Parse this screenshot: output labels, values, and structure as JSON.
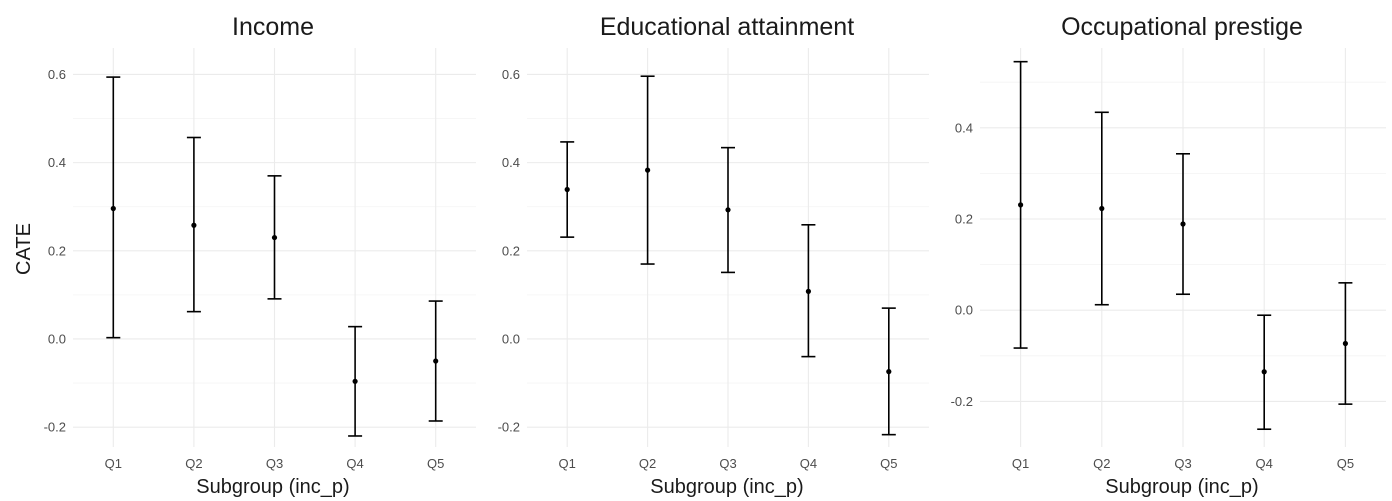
{
  "chart_data": [
    {
      "type": "errorbar",
      "title": "Income",
      "xlabel": "Subgroup (inc_p)",
      "ylabel": "CATE",
      "categories": [
        "Q1",
        "Q2",
        "Q3",
        "Q4",
        "Q5"
      ],
      "estimate": [
        0.296,
        0.258,
        0.23,
        -0.096,
        -0.05
      ],
      "lower": [
        0.003,
        0.062,
        0.091,
        -0.22,
        -0.186
      ],
      "upper": [
        0.594,
        0.457,
        0.37,
        0.028,
        0.086
      ],
      "yticks": [
        -0.2,
        0.0,
        0.2,
        0.4,
        0.6
      ],
      "ytick_labels": [
        "-0.2",
        "0.0",
        "0.2",
        "0.4",
        "0.6"
      ],
      "ylim": [
        -0.245,
        0.66
      ],
      "grid": true
    },
    {
      "type": "errorbar",
      "title": "Educational attainment",
      "xlabel": "Subgroup (inc_p)",
      "ylabel": "",
      "categories": [
        "Q1",
        "Q2",
        "Q3",
        "Q4",
        "Q5"
      ],
      "estimate": [
        0.339,
        0.383,
        0.293,
        0.108,
        -0.074
      ],
      "lower": [
        0.231,
        0.17,
        0.151,
        -0.04,
        -0.217
      ],
      "upper": [
        0.447,
        0.596,
        0.434,
        0.259,
        0.07
      ],
      "yticks": [
        -0.2,
        0.0,
        0.2,
        0.4,
        0.6
      ],
      "ytick_labels": [
        "-0.2",
        "0.0",
        "0.2",
        "0.4",
        "0.6"
      ],
      "ylim": [
        -0.245,
        0.66
      ],
      "grid": true
    },
    {
      "type": "errorbar",
      "title": "Occupational prestige",
      "xlabel": "Subgroup (inc_p)",
      "ylabel": "",
      "categories": [
        "Q1",
        "Q2",
        "Q3",
        "Q4",
        "Q5"
      ],
      "estimate": [
        0.231,
        0.223,
        0.189,
        -0.135,
        -0.073
      ],
      "lower": [
        -0.083,
        0.012,
        0.035,
        -0.261,
        -0.206
      ],
      "upper": [
        0.545,
        0.434,
        0.343,
        -0.011,
        0.06
      ],
      "yticks": [
        -0.2,
        0.0,
        0.2,
        0.4
      ],
      "ytick_labels": [
        "-0.2",
        "0.0",
        "0.2",
        "0.4"
      ],
      "ylim": [
        -0.3,
        0.575
      ],
      "grid": true
    }
  ]
}
